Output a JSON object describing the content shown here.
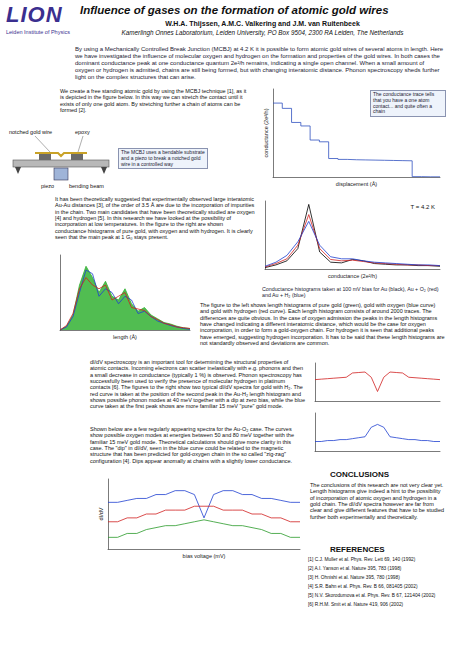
{
  "header": {
    "logo": "LION",
    "logo_subtitle": "Leiden Institute of Physics",
    "title": "Influence of gases on the formation of atomic gold wires",
    "authors": "W.H.A. Thijssen, A.M.C. Valkering and J.M. van Ruitenbeek",
    "affiliation": "Kamerlingh Onnes Laboratorium, Leiden University, PO Box 9504, 2300 RA Leiden, The Netherlands"
  },
  "abstract": "By using a Mechanically Controlled Break Junction (MCBJ) at 4.2 K it is possible to form atomic gold wires of several atoms in length. Here we have investigated the influence of molecular oxygen and hydrogen on the formation and properties of the gold wires. In both cases the dominant conductance peak at one conductance quantum 2e²/h remains, indicating a single open channel. When a small amount of oxygen or hydrogen is admitted, chains are still being formed, but with changing interatomic distance. Phonon spectroscopy sheds further light on the complex structures that can arise.",
  "paragraphs": [
    "We create a free standing atomic gold by using the MCBJ technique [1], as it is depicted in the figure below. In this way we can stretch the contact until it exists of only one gold atom. By stretching further a chain of atoms can be formed [2].",
    "It has been theoretically suggested that experimentally observed large interatomic Au-Au distances [3], of the order of 3.5 Å are due to the incorporation of impurities in the chain. Two main candidates that have been theoretically studied are oxygen [4] and hydrogen [5]. In this research we have looked at the possibility of incorporation at low temperatures. In the figure to the right are shown conductance histograms of pure gold, with oxygen and with hydrogen. It is clearly seen that the main peak at 1 G₀ stays present.",
    "The figure to the left shows length histograms of pure gold (green), gold with oxygen (blue curve) and gold with hydrogen (red curve). Each length histogram consists of around 2000 traces. The differences are quite obvious. In the case of oxygen admission the peaks in the length histograms have changed indicating a different interatomic distance, which would be the case for oxygen incorporation, in order to form a gold-oxygen chain. For hydrogen it is seen that additional peaks have emerged, suggesting hydrogen incorporation. It has to be said that these length histograms are not standardly observed and deviations are common.",
    "dI/dV spectroscopy is an important tool for determining the structural properties of atomic contacts. Incoming electrons can scatter inelastically with e.g. phonons and then a small decrease in conductance (typically 1 %) is observed. Phonon spectroscopy has successfully been used to verify the presence of molecular hydrogen in platinum contacts [6]. The figures to the right show two typical dI/dV spectra for gold with H₂. The red curve is taken at the position of the second peak in the Au-H₂ length histogram and shows possible phonon modes at 40 meV together with a dip at zero bias, while the blue curve taken at the first peak shows are more familiar 15 meV \"pure\" gold mode.",
    "Shown below are a few regularly appearing spectra for the Au-O₂ case. The curves show possible oxygen modes at energies between 50 and 80 meV together with the familiar 15 meV gold mode. Theoretical calculations should give more clarity in this case. The \"dip\" in dI/dV, seen in the blue curve could be related to the magnetic structure that has been predicted for gold-oxygen chain in the so called \"zig-zag\" configuration [4]. Dips appear anomally at chains with a slightly lower conductance."
  ],
  "captions": {
    "mcbj": "The MCBJ uses a bendable substrate and a piezo to break a notched gold wire in a controlled way",
    "trace": "The conductance trace tells that you have a one atom contact... and quite often a chain",
    "conductance_histogram": "Conductance histograms taken at 100 mV bias for Au (black), Au + O₂ (red) and Au + H₂ (blue)"
  },
  "diagram_labels": [
    "notched gold wire",
    "epoxy",
    "bending beam",
    "piezo"
  ],
  "conclusions": {
    "heading": "CONCLUSIONS",
    "text": "The conclusions of this research are not very clear yet. Length histograms give indeed a hint to the possibility of incorporation of atomic oxygen and hydrogen in a gold chain. The dI/dV spectra however are far from clear and give different features that have to be studied further both experimentally and theoretically."
  },
  "references": {
    "heading": "REFERENCES",
    "items": [
      "[1] C.J. Muller et al. Phys. Rev. Lett 69, 140 (1992)",
      "[2] A.I. Yanson et al. Nature 395, 783 (1998)",
      "[3] H. Ohnishi et al. Nature 395, 780 (1998)",
      "[4] S.R. Bahn et al. Phys. Rev. B 66, 081405 (2002)",
      "[5] N.V. Skorodumova et al. Phys. Rev. B 67, 121404 (2002)",
      "[6] R.H.M. Smit et al. Nature 419, 906 (2002)"
    ]
  },
  "chart_data": [
    {
      "type": "step",
      "xlabel": "displacement (Å)",
      "ylabel": "conductance (2e²/h)",
      "x": [
        0,
        0.5,
        1,
        1.5,
        2,
        2.5,
        3,
        3.5,
        4,
        4.5,
        5,
        5.5,
        6,
        6.5,
        7,
        7.5,
        8,
        8.5,
        9
      ],
      "series": [
        {
          "color": "#3050c0",
          "values": [
            4.2,
            3.9,
            3.1,
            2.9,
            2.1,
            2.0,
            1.05,
            1.0,
            0.98,
            0.97,
            0.96,
            0.95,
            0.94,
            0.93,
            0.92,
            0.02,
            0.01,
            0.01,
            0.01
          ]
        }
      ],
      "xlim": [
        0,
        9
      ],
      "ylim": [
        0,
        5
      ],
      "grid": false,
      "tick_labels": false
    },
    {
      "type": "line",
      "xlabel": "conductance (2e²/h)",
      "annotation": "T = 4.2 K",
      "x": [
        0,
        0.25,
        0.5,
        0.75,
        1,
        1.25,
        1.5,
        1.75,
        2,
        2.25,
        2.5,
        2.75,
        3,
        3.25,
        3.5,
        3.75,
        4
      ],
      "series": [
        {
          "color": "#000000",
          "values": [
            2,
            6,
            12,
            30,
            95,
            25,
            10,
            9,
            14,
            12,
            8,
            7,
            6,
            6,
            5,
            5,
            4
          ]
        },
        {
          "color": "#d02020",
          "values": [
            3,
            8,
            15,
            35,
            80,
            30,
            14,
            12,
            13,
            11,
            9,
            8,
            7,
            6,
            6,
            5,
            5
          ]
        },
        {
          "color": "#2040d0",
          "values": [
            4,
            10,
            20,
            40,
            70,
            35,
            18,
            15,
            15,
            12,
            10,
            9,
            8,
            7,
            6,
            6,
            5
          ]
        }
      ],
      "xlim": [
        0,
        4
      ],
      "ylim": [
        0,
        100
      ],
      "grid": false,
      "tick_labels": false
    },
    {
      "type": "line",
      "xlabel": "length (Å)",
      "x": [
        0,
        1,
        2,
        3,
        4,
        5,
        6,
        7,
        8,
        9,
        10,
        11,
        12,
        13,
        14,
        15,
        16,
        17,
        18,
        19,
        20
      ],
      "series": [
        {
          "type": "area",
          "color": "#33b233",
          "values": [
            0,
            5,
            20,
            60,
            85,
            70,
            50,
            65,
            45,
            40,
            55,
            35,
            25,
            30,
            20,
            15,
            10,
            8,
            5,
            3,
            2
          ]
        },
        {
          "color": "#2040d0",
          "values": [
            0,
            4,
            18,
            50,
            80,
            75,
            45,
            55,
            50,
            35,
            45,
            40,
            22,
            25,
            18,
            12,
            9,
            6,
            4,
            2,
            1
          ]
        },
        {
          "color": "#d02020",
          "values": [
            0,
            6,
            22,
            55,
            70,
            60,
            55,
            60,
            40,
            45,
            50,
            30,
            28,
            26,
            18,
            14,
            9,
            7,
            4,
            3,
            2
          ]
        }
      ],
      "xlim": [
        0,
        20
      ],
      "ylim": [
        0,
        100
      ],
      "grid": false,
      "tick_labels": false
    },
    {
      "type": "line",
      "x": [
        -100,
        -90,
        -80,
        -70,
        -60,
        -50,
        -40,
        -30,
        -20,
        -10,
        0,
        10,
        20,
        30,
        40,
        50,
        60,
        70,
        80,
        90,
        100
      ],
      "series": [
        {
          "color": "#d02020",
          "values": [
            0.985,
            0.986,
            0.987,
            0.988,
            0.989,
            0.99,
            0.999,
            1.0,
            1.001,
            0.99,
            0.96,
            0.99,
            1.001,
            1.0,
            0.999,
            0.99,
            0.989,
            0.988,
            0.987,
            0.986,
            0.985
          ]
        }
      ],
      "xlim": [
        -100,
        100
      ],
      "ylim": [
        0.94,
        1.02
      ],
      "grid": false,
      "tick_labels": false
    },
    {
      "type": "line",
      "x": [
        -100,
        -90,
        -80,
        -70,
        -60,
        -50,
        -40,
        -30,
        -20,
        -10,
        0,
        10,
        20,
        30,
        40,
        50,
        60,
        70,
        80,
        90,
        100
      ],
      "series": [
        {
          "color": "#2040d0",
          "values": [
            0.99,
            0.99,
            0.991,
            0.991,
            0.992,
            0.992,
            0.993,
            0.994,
            0.995,
            1.005,
            1.008,
            1.005,
            0.995,
            0.994,
            0.993,
            0.992,
            0.992,
            0.991,
            0.991,
            0.99,
            0.99
          ]
        }
      ],
      "xlim": [
        -100,
        100
      ],
      "ylim": [
        0.98,
        1.02
      ],
      "grid": false,
      "tick_labels": false
    },
    {
      "type": "line",
      "xlabel": "bias voltage (mV)",
      "ylabel": "dI/dV",
      "x": [
        -100,
        -90,
        -80,
        -70,
        -60,
        -50,
        -40,
        -30,
        -20,
        -10,
        0,
        10,
        20,
        30,
        40,
        50,
        60,
        70,
        80,
        90,
        100
      ],
      "series": [
        {
          "color": "#2040d0",
          "values": [
            1.04,
            1.04,
            1.045,
            1.05,
            1.05,
            1.06,
            1.06,
            1.07,
            1.07,
            1.06,
            1.0,
            1.06,
            1.07,
            1.07,
            1.06,
            1.06,
            1.05,
            1.05,
            1.045,
            1.04,
            1.04
          ]
        },
        {
          "color": "#d02020",
          "values": [
            0.99,
            0.99,
            1.0,
            1.0,
            1.01,
            1.01,
            1.02,
            1.02,
            1.02,
            1.03,
            1.03,
            1.03,
            1.02,
            1.02,
            1.02,
            1.01,
            1.01,
            1.0,
            1.0,
            0.99,
            0.99
          ]
        },
        {
          "color": "#2a9a2a",
          "values": [
            0.95,
            0.95,
            0.96,
            0.96,
            0.97,
            0.975,
            0.98,
            0.98,
            0.985,
            0.99,
            0.995,
            0.99,
            0.985,
            0.98,
            0.98,
            0.975,
            0.97,
            0.96,
            0.96,
            0.95,
            0.95
          ]
        }
      ],
      "xlim": [
        -100,
        100
      ],
      "ylim": [
        0.92,
        1.1
      ],
      "grid": false,
      "tick_labels": false
    }
  ]
}
